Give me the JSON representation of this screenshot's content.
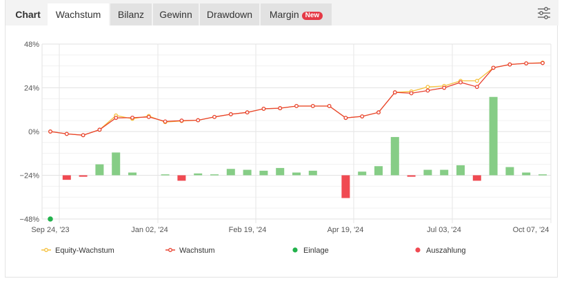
{
  "tabs": {
    "title": "Chart",
    "items": [
      {
        "label": "Wachstum",
        "active": true
      },
      {
        "label": "Bilanz",
        "active": false
      },
      {
        "label": "Gewinn",
        "active": false
      },
      {
        "label": "Drawdown",
        "active": false
      },
      {
        "label": "Margin",
        "active": false,
        "badge": "New"
      }
    ],
    "settings_icon": "sliders-icon"
  },
  "colors": {
    "equity": "#f5c03a",
    "growth": "#e8402f",
    "deposit": "#22b24c",
    "withdrawal": "#f04a52",
    "deposit_bar": "#86cd86",
    "badge": "#e53945"
  },
  "chart_data": {
    "type": "line",
    "title": "",
    "xlabel": "",
    "ylabel": "",
    "ylim": [
      -48,
      48
    ],
    "y_ticks": [
      "48%",
      "24%",
      "0%",
      "-24%",
      "-48%"
    ],
    "x_ticks": [
      "Sep 24, '23",
      "Jan 02, '24",
      "Feb 19, '24",
      "Apr 19, '24",
      "Jul 03, '24",
      "Oct 07, '24"
    ],
    "grid": true,
    "legend": [
      "Equity-Wachstum",
      "Wachstum",
      "Einlage",
      "Auszahlung"
    ],
    "legend_position": "bottom",
    "series": [
      {
        "name": "Wachstum",
        "type": "line",
        "values": [
          0,
          -1.3,
          -2,
          1,
          7.5,
          7.6,
          8,
          5.5,
          6,
          6.2,
          8,
          9.5,
          10.5,
          12.5,
          12.8,
          14,
          14,
          14,
          7.5,
          8.3,
          10.5,
          21.5,
          21,
          22.5,
          24,
          27,
          24.5,
          35,
          36.8,
          37.4,
          37.6
        ]
      },
      {
        "name": "Equity-Wachstum",
        "type": "line",
        "values": [
          0,
          -1.3,
          -2,
          1,
          8.8,
          7,
          8.5,
          5.2,
          5.8,
          6.2,
          8,
          9.5,
          10.5,
          12.5,
          12.8,
          14,
          14,
          14,
          7.5,
          8.3,
          10.5,
          21.5,
          22,
          24.5,
          25,
          27.8,
          27.8,
          35,
          36.8,
          37.4,
          37.8
        ]
      },
      {
        "name": "Einlage/Auszahlung",
        "type": "bar",
        "values": [
          0,
          -2.5,
          -0.8,
          6,
          12.5,
          1.5,
          0,
          0.5,
          -3,
          1,
          0.5,
          3.5,
          3,
          2.5,
          4,
          1.5,
          2.5,
          0,
          -12.5,
          2,
          5,
          21,
          -0.8,
          3,
          3,
          5.5,
          -3,
          43,
          4.5,
          1.5,
          0.5
        ]
      },
      {
        "name": "Einlage",
        "type": "scatter",
        "values": [
          {
            "x": "Sep 24, '23",
            "y": -48
          }
        ]
      }
    ]
  }
}
